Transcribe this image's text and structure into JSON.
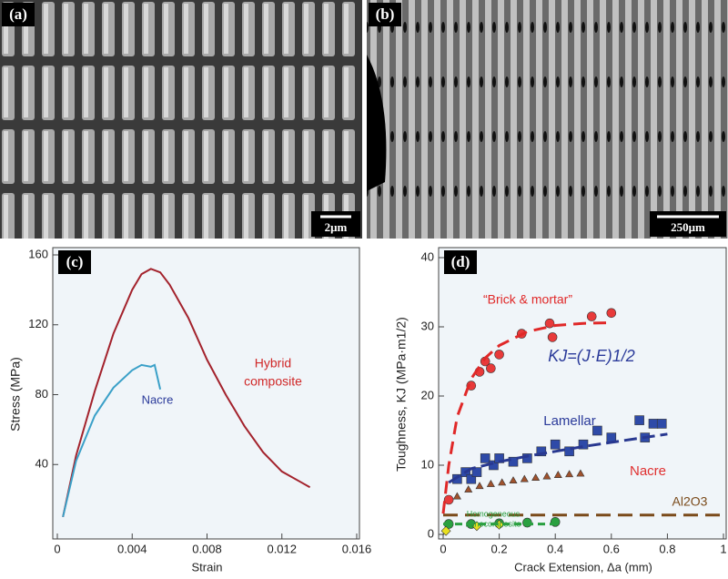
{
  "images": [
    {
      "label": "(a)",
      "scale_bar": "2μm"
    },
    {
      "label": "(b)",
      "scale_bar": "250μm"
    }
  ],
  "chart_data": [
    {
      "type": "line",
      "label": "(c)",
      "x_label": "Strain",
      "y_label": "Stress (MPa)",
      "xlim": [
        0,
        0.016
      ],
      "xticks": [
        0,
        0.004,
        0.008,
        0.012,
        0.016
      ],
      "ylim": [
        0,
        160
      ],
      "yticks": [
        40,
        80,
        120,
        160
      ],
      "annotations": [
        "Nacre",
        "Hybrid",
        "composite"
      ],
      "series": [
        {
          "color": "#a3222c",
          "x": [
            0.0003,
            0.001,
            0.002,
            0.003,
            0.004,
            0.0045,
            0.005,
            0.0055,
            0.006,
            0.007,
            0.008,
            0.009,
            0.01,
            0.011,
            0.012,
            0.013,
            0.0135
          ],
          "values": [
            10,
            45,
            82,
            115,
            140,
            149,
            152,
            150,
            143,
            124,
            100,
            80,
            62,
            47,
            36,
            30,
            27
          ]
        },
        {
          "color": "#3aa0c8",
          "x": [
            0.0003,
            0.001,
            0.002,
            0.003,
            0.004,
            0.0045,
            0.005,
            0.0052,
            0.0055
          ],
          "values": [
            10,
            42,
            68,
            84,
            94,
            97,
            96,
            97,
            83
          ]
        }
      ]
    },
    {
      "type": "scatter",
      "label": "(d)",
      "x_label": "Crack Extension, Δa (mm)",
      "y_label": "Toughness, KJ (MPa·m1/2)",
      "xlim": [
        0,
        1
      ],
      "xticks": [
        0,
        0.2,
        0.4,
        0.6,
        0.8,
        1
      ],
      "ylim": [
        0,
        40
      ],
      "yticks": [
        0,
        10,
        20,
        30,
        40
      ],
      "annotations": [
        "“Brick & mortar”",
        "KJ=(J·E)1/2",
        "Lamellar",
        "Nacre",
        "Al2O3",
        "Homogeneous",
        "nanocomposite"
      ],
      "series": [
        {
          "color": "#e83a3a",
          "marker": "circle",
          "x": [
            0.02,
            0.1,
            0.13,
            0.15,
            0.17,
            0.2,
            0.28,
            0.38,
            0.39,
            0.53,
            0.6
          ],
          "values": [
            5,
            21.5,
            23.5,
            25,
            24,
            26,
            29,
            30.5,
            28.5,
            31.5,
            32
          ]
        },
        {
          "color": "#2e4aa8",
          "marker": "square",
          "x": [
            0.05,
            0.08,
            0.1,
            0.12,
            0.15,
            0.18,
            0.2,
            0.25,
            0.3,
            0.35,
            0.4,
            0.45,
            0.5,
            0.55,
            0.6,
            0.7,
            0.72,
            0.75,
            0.78
          ],
          "values": [
            8,
            9,
            8,
            9,
            11,
            10,
            11,
            10.5,
            11,
            12,
            13,
            12,
            13,
            15,
            14,
            16.5,
            14,
            16,
            16
          ]
        },
        {
          "color": "#a0522d",
          "marker": "triangle",
          "x": [
            0.05,
            0.09,
            0.13,
            0.17,
            0.21,
            0.25,
            0.29,
            0.33,
            0.37,
            0.41,
            0.45,
            0.49
          ],
          "values": [
            5.5,
            6.5,
            7,
            7.3,
            7.5,
            7.8,
            8,
            8.2,
            8.4,
            8.6,
            8.7,
            8.8
          ]
        },
        {
          "color": "#2aa040",
          "marker": "circle",
          "x": [
            0.02,
            0.1,
            0.2,
            0.3,
            0.4
          ],
          "values": [
            1.5,
            1.5,
            1.6,
            1.7,
            1.8
          ]
        },
        {
          "color": "#e8e020",
          "marker": "diamond",
          "x": [
            0.01,
            0.12,
            0.2
          ],
          "values": [
            0.5,
            1.2,
            1.4
          ]
        },
        {
          "color": "#e02828",
          "dash": "14 8",
          "x": [
            0,
            0.02,
            0.05,
            0.1,
            0.15,
            0.2,
            0.3,
            0.4,
            0.5,
            0.6
          ],
          "values": [
            3,
            10,
            17,
            22.5,
            25.5,
            27.3,
            29.3,
            30.2,
            30.5,
            30.6
          ]
        },
        {
          "color": "#283890",
          "dash": "14 6",
          "x": [
            0.02,
            0.1,
            0.2,
            0.3,
            0.4,
            0.5,
            0.6,
            0.7,
            0.8
          ],
          "values": [
            7.5,
            9.5,
            10.5,
            11.3,
            12,
            12.7,
            13.3,
            13.9,
            14.5
          ]
        },
        {
          "color": "#7a4a1a",
          "dash": "16 8",
          "x": [
            0,
            1
          ],
          "values": [
            2.8,
            2.8
          ]
        },
        {
          "color": "#2aa040",
          "dash": "8 5",
          "x": [
            0,
            0.4
          ],
          "values": [
            1.5,
            1.5
          ]
        }
      ]
    }
  ]
}
